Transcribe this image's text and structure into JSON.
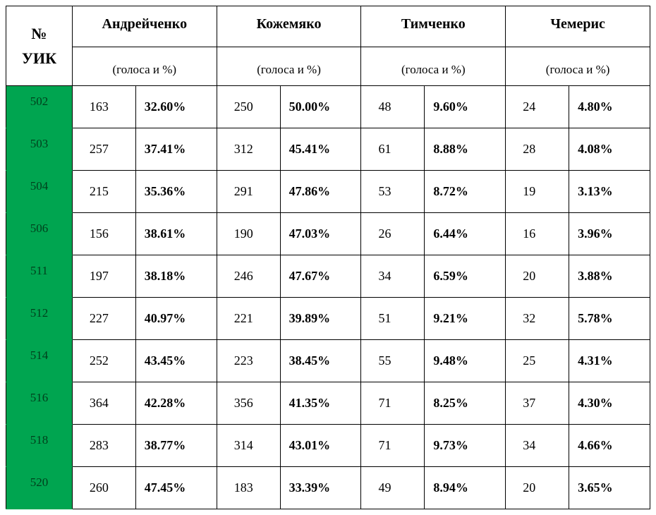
{
  "table": {
    "header": {
      "uik_label_line1": "№",
      "uik_label_line2": "УИК",
      "sub_label": "(голоса и %)",
      "candidates": [
        "Андрейченко",
        "Кожемяко",
        "Тимченко",
        "Чемерис"
      ]
    },
    "colors": {
      "uik_bg": "#00a550",
      "uik_text": "#003f1c",
      "border": "#000000",
      "background": "#ffffff"
    },
    "rows": [
      {
        "uik": "502",
        "c": [
          {
            "v": "163",
            "p": "32.60%"
          },
          {
            "v": "250",
            "p": "50.00%"
          },
          {
            "v": "48",
            "p": "9.60%"
          },
          {
            "v": "24",
            "p": "4.80%"
          }
        ]
      },
      {
        "uik": "503",
        "c": [
          {
            "v": "257",
            "p": "37.41%"
          },
          {
            "v": "312",
            "p": "45.41%"
          },
          {
            "v": "61",
            "p": "8.88%"
          },
          {
            "v": "28",
            "p": "4.08%"
          }
        ]
      },
      {
        "uik": "504",
        "c": [
          {
            "v": "215",
            "p": "35.36%"
          },
          {
            "v": "291",
            "p": "47.86%"
          },
          {
            "v": "53",
            "p": "8.72%"
          },
          {
            "v": "19",
            "p": "3.13%"
          }
        ]
      },
      {
        "uik": "506",
        "c": [
          {
            "v": "156",
            "p": "38.61%"
          },
          {
            "v": "190",
            "p": "47.03%"
          },
          {
            "v": "26",
            "p": "6.44%"
          },
          {
            "v": "16",
            "p": "3.96%"
          }
        ]
      },
      {
        "uik": "511",
        "c": [
          {
            "v": "197",
            "p": "38.18%"
          },
          {
            "v": "246",
            "p": "47.67%"
          },
          {
            "v": "34",
            "p": "6.59%"
          },
          {
            "v": "20",
            "p": "3.88%"
          }
        ]
      },
      {
        "uik": "512",
        "c": [
          {
            "v": "227",
            "p": "40.97%"
          },
          {
            "v": "221",
            "p": "39.89%"
          },
          {
            "v": "51",
            "p": "9.21%"
          },
          {
            "v": "32",
            "p": "5.78%"
          }
        ]
      },
      {
        "uik": "514",
        "c": [
          {
            "v": "252",
            "p": "43.45%"
          },
          {
            "v": "223",
            "p": "38.45%"
          },
          {
            "v": "55",
            "p": "9.48%"
          },
          {
            "v": "25",
            "p": "4.31%"
          }
        ]
      },
      {
        "uik": "516",
        "c": [
          {
            "v": "364",
            "p": "42.28%"
          },
          {
            "v": "356",
            "p": "41.35%"
          },
          {
            "v": "71",
            "p": "8.25%"
          },
          {
            "v": "37",
            "p": "4.30%"
          }
        ]
      },
      {
        "uik": "518",
        "c": [
          {
            "v": "283",
            "p": "38.77%"
          },
          {
            "v": "314",
            "p": "43.01%"
          },
          {
            "v": "71",
            "p": "9.73%"
          },
          {
            "v": "34",
            "p": "4.66%"
          }
        ]
      },
      {
        "uik": "520",
        "c": [
          {
            "v": "260",
            "p": "47.45%"
          },
          {
            "v": "183",
            "p": "33.39%"
          },
          {
            "v": "49",
            "p": "8.94%"
          },
          {
            "v": "20",
            "p": "3.65%"
          }
        ]
      }
    ]
  }
}
